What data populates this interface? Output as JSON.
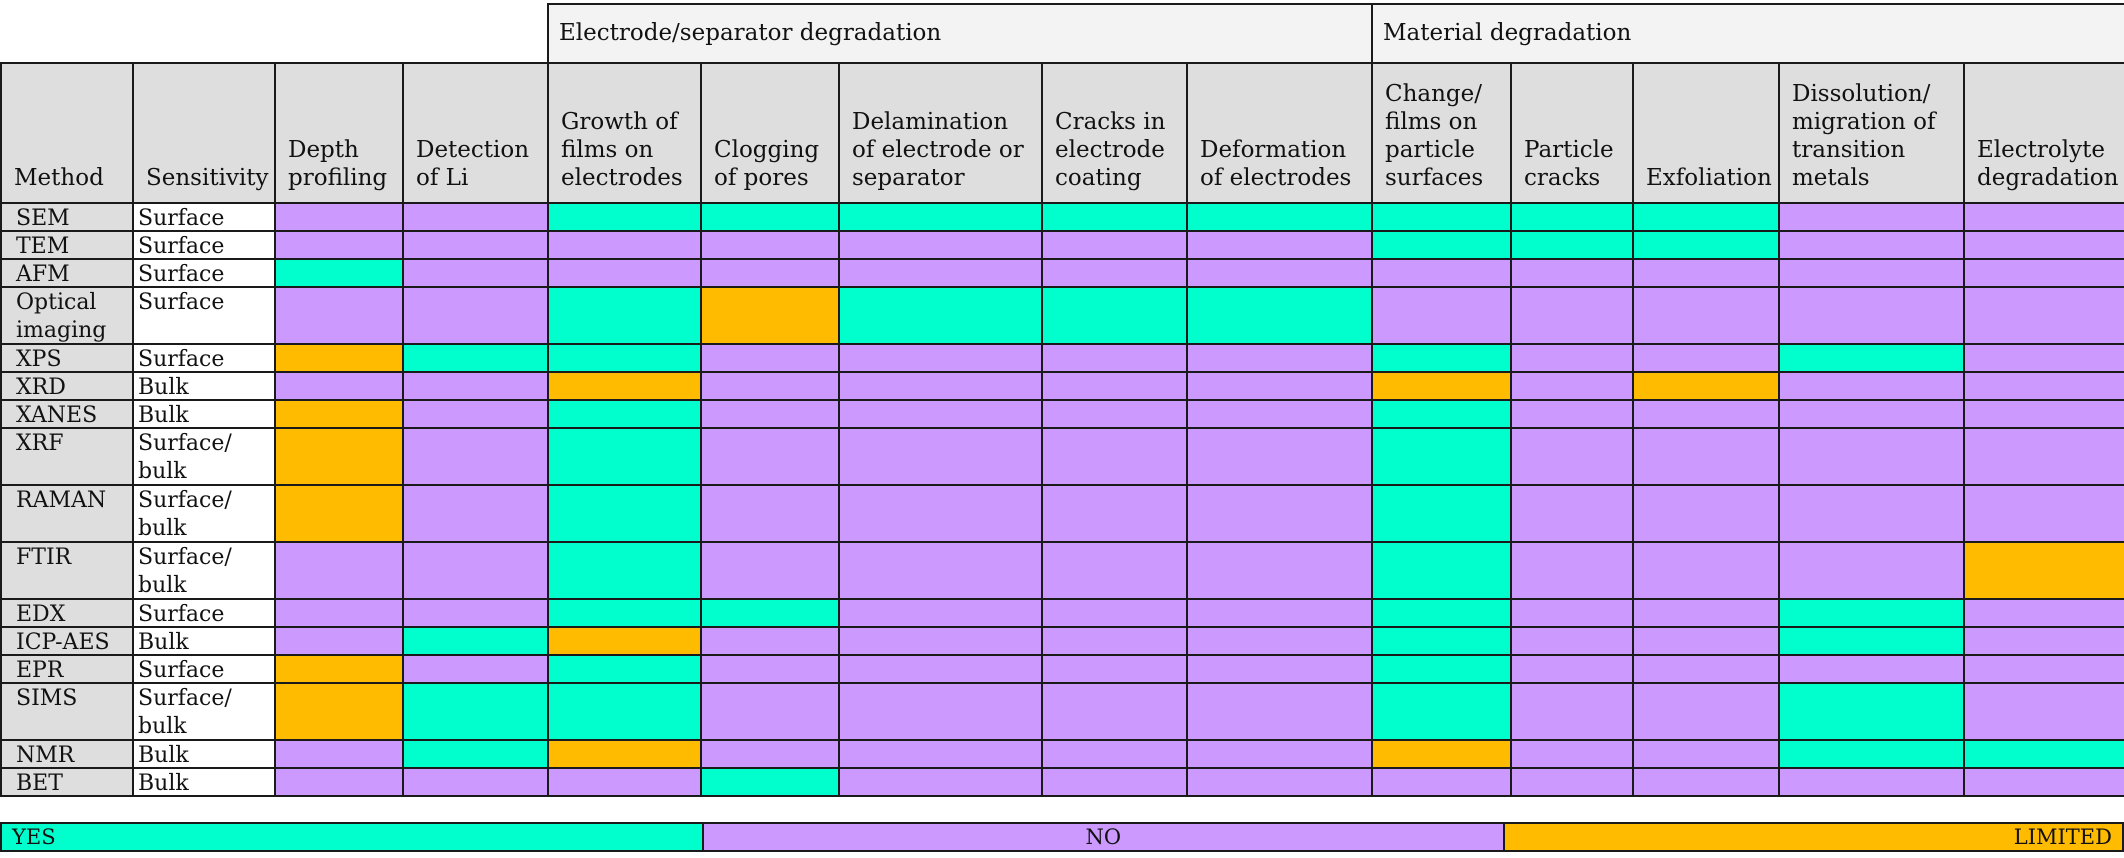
{
  "colors": {
    "YES": "#00ffcc",
    "NO": "#cc99ff",
    "LIMITED": "#ffbb00"
  },
  "groups": [
    {
      "label": "Electrode/separator degradation",
      "span": [
        4,
        8
      ]
    },
    {
      "label": "Material degradation",
      "span": [
        9,
        13
      ]
    }
  ],
  "columns": [
    "Method",
    "Sensitivity",
    "Depth\nprofiling",
    "Detection\nof Li",
    "Growth of\nfilms on\nelectrodes",
    "Clogging\nof pores",
    "Delamination\nof electrode or\nseparator",
    "Cracks in\nelectrode\ncoating",
    "Deformation\nof electrodes",
    "Change/\nfilms on\nparticle\nsurfaces",
    "Particle\ncracks",
    "Exfoliation",
    "Dissolution/\nmigration of\ntransition\nmetals",
    "Electrolyte\ndegradation"
  ],
  "rows": [
    {
      "method": "SEM",
      "sensitivity": "Surface",
      "cells": [
        "N",
        "N",
        "Y",
        "Y",
        "Y",
        "Y",
        "Y",
        "Y",
        "Y",
        "Y",
        "N",
        "N"
      ]
    },
    {
      "method": "TEM",
      "sensitivity": "Surface",
      "cells": [
        "N",
        "N",
        "N",
        "N",
        "N",
        "N",
        "N",
        "Y",
        "Y",
        "Y",
        "N",
        "N"
      ]
    },
    {
      "method": "AFM",
      "sensitivity": "Surface",
      "cells": [
        "Y",
        "N",
        "N",
        "N",
        "N",
        "N",
        "N",
        "N",
        "N",
        "N",
        "N",
        "N"
      ]
    },
    {
      "method": "Optical\nimaging",
      "sensitivity": "Surface",
      "cells": [
        "N",
        "N",
        "Y",
        "L",
        "Y",
        "Y",
        "Y",
        "N",
        "N",
        "N",
        "N",
        "N"
      ]
    },
    {
      "method": "XPS",
      "sensitivity": "Surface",
      "cells": [
        "L",
        "Y",
        "Y",
        "N",
        "N",
        "N",
        "N",
        "Y",
        "N",
        "N",
        "Y",
        "N"
      ]
    },
    {
      "method": "XRD",
      "sensitivity": "Bulk",
      "cells": [
        "N",
        "N",
        "L",
        "N",
        "N",
        "N",
        "N",
        "L",
        "N",
        "L",
        "N",
        "N"
      ]
    },
    {
      "method": "XANES",
      "sensitivity": "Bulk",
      "cells": [
        "L",
        "N",
        "Y",
        "N",
        "N",
        "N",
        "N",
        "Y",
        "N",
        "N",
        "N",
        "N"
      ]
    },
    {
      "method": "XRF",
      "sensitivity": "Surface/\nbulk",
      "cells": [
        "L",
        "N",
        "Y",
        "N",
        "N",
        "N",
        "N",
        "Y",
        "N",
        "N",
        "N",
        "N"
      ]
    },
    {
      "method": "RAMAN",
      "sensitivity": "Surface/\nbulk",
      "cells": [
        "L",
        "N",
        "Y",
        "N",
        "N",
        "N",
        "N",
        "Y",
        "N",
        "N",
        "N",
        "N"
      ]
    },
    {
      "method": "FTIR",
      "sensitivity": "Surface/\nbulk",
      "cells": [
        "N",
        "N",
        "Y",
        "N",
        "N",
        "N",
        "N",
        "Y",
        "N",
        "N",
        "N",
        "L"
      ]
    },
    {
      "method": "EDX",
      "sensitivity": "Surface",
      "cells": [
        "N",
        "N",
        "Y",
        "Y",
        "N",
        "N",
        "N",
        "Y",
        "N",
        "N",
        "Y",
        "N"
      ]
    },
    {
      "method": "ICP-AES",
      "sensitivity": "Bulk",
      "cells": [
        "N",
        "Y",
        "L",
        "N",
        "N",
        "N",
        "N",
        "Y",
        "N",
        "N",
        "Y",
        "N"
      ]
    },
    {
      "method": "EPR",
      "sensitivity": "Surface",
      "cells": [
        "L",
        "N",
        "Y",
        "N",
        "N",
        "N",
        "N",
        "Y",
        "N",
        "N",
        "N",
        "N"
      ]
    },
    {
      "method": "SIMS",
      "sensitivity": "Surface/\nbulk",
      "cells": [
        "L",
        "Y",
        "Y",
        "N",
        "N",
        "N",
        "N",
        "Y",
        "N",
        "N",
        "Y",
        "N"
      ]
    },
    {
      "method": "NMR",
      "sensitivity": "Bulk",
      "cells": [
        "N",
        "Y",
        "L",
        "N",
        "N",
        "N",
        "N",
        "L",
        "N",
        "N",
        "Y",
        "Y"
      ]
    },
    {
      "method": "BET",
      "sensitivity": "Bulk",
      "cells": [
        "N",
        "N",
        "N",
        "Y",
        "N",
        "N",
        "N",
        "N",
        "N",
        "N",
        "N",
        "N"
      ]
    }
  ],
  "legend": [
    {
      "key": "Y",
      "label": "YES",
      "align": "left",
      "share": 0.33
    },
    {
      "key": "N",
      "label": "NO",
      "align": "center",
      "share": 0.378
    },
    {
      "key": "L",
      "label": "LIMITED",
      "align": "right",
      "share": 0.292
    }
  ]
}
